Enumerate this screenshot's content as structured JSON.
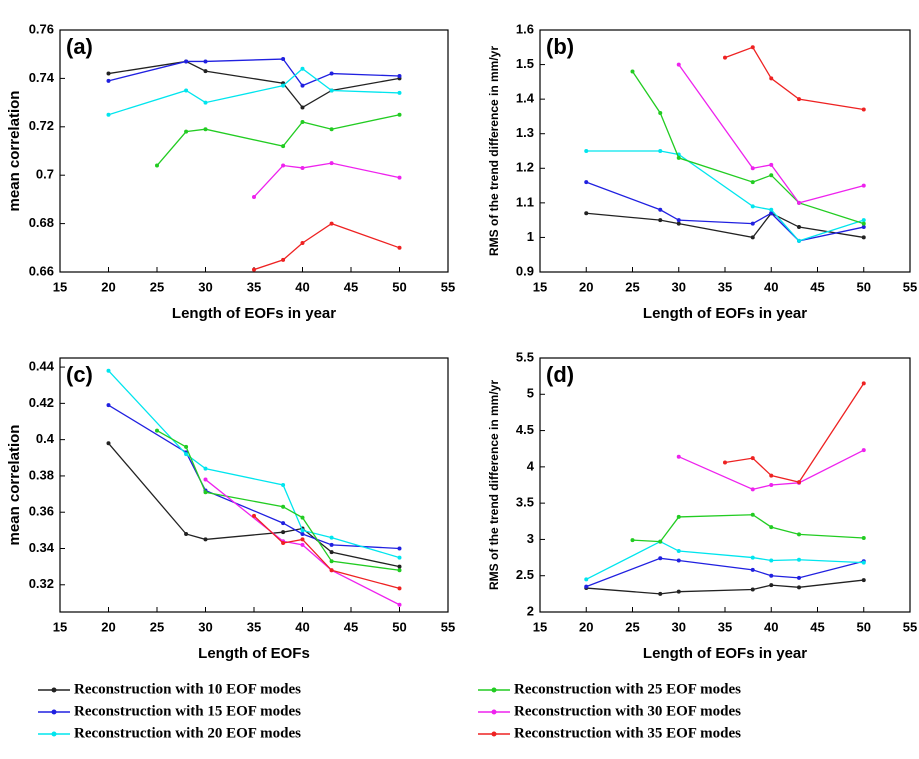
{
  "chart_data": [
    {
      "type": "line",
      "panel_label": "(a)",
      "ylabel": "mean correlation",
      "xlabel": "Length of EOFs in year",
      "xlim": [
        15,
        55
      ],
      "xticks": [
        15,
        20,
        25,
        30,
        35,
        40,
        45,
        50,
        55
      ],
      "ylim": [
        0.66,
        0.76
      ],
      "yticks": [
        0.66,
        0.68,
        0.7,
        0.72,
        0.74,
        0.76
      ],
      "series": [
        {
          "name": "Reconstruction with 10 EOF modes",
          "color": "#222222",
          "x": [
            20,
            28,
            30,
            38,
            40,
            43,
            50
          ],
          "values": [
            0.742,
            0.747,
            0.743,
            0.738,
            0.728,
            0.735,
            0.74
          ]
        },
        {
          "name": "Reconstruction with 15 EOF modes",
          "color": "#2020e0",
          "x": [
            20,
            28,
            30,
            38,
            40,
            43,
            50
          ],
          "values": [
            0.739,
            0.747,
            0.747,
            0.748,
            0.737,
            0.742,
            0.741
          ]
        },
        {
          "name": "Reconstruction with 20 EOF modes",
          "color": "#00e5ee",
          "x": [
            20,
            28,
            30,
            38,
            40,
            43,
            50
          ],
          "values": [
            0.725,
            0.735,
            0.73,
            0.737,
            0.744,
            0.735,
            0.734
          ]
        },
        {
          "name": "Reconstruction with 25 EOF modes",
          "color": "#22cc22",
          "x": [
            25,
            28,
            30,
            38,
            40,
            43,
            50
          ],
          "values": [
            0.704,
            0.718,
            0.719,
            0.712,
            0.722,
            0.719,
            0.725
          ]
        },
        {
          "name": "Reconstruction with 30 EOF modes",
          "color": "#ee22ee",
          "x": [
            35,
            38,
            40,
            43,
            50
          ],
          "values": [
            0.691,
            0.704,
            0.703,
            0.705,
            0.699
          ]
        },
        {
          "name": "Reconstruction with 35 EOF modes",
          "color": "#ee2222",
          "x": [
            35,
            38,
            40,
            43,
            50
          ],
          "values": [
            0.661,
            0.665,
            0.672,
            0.68,
            0.67
          ]
        }
      ]
    },
    {
      "type": "line",
      "panel_label": "(b)",
      "ylabel": "RMS of the trend difference in mm/yr",
      "xlabel": "Length of EOFs in year",
      "xlim": [
        15,
        55
      ],
      "xticks": [
        15,
        20,
        25,
        30,
        35,
        40,
        45,
        50,
        55
      ],
      "ylim": [
        0.9,
        1.6
      ],
      "yticks": [
        0.9,
        1,
        1.1,
        1.2,
        1.3,
        1.4,
        1.5,
        1.6
      ],
      "series": [
        {
          "color": "#222222",
          "x": [
            20,
            28,
            30,
            38,
            40,
            43,
            50
          ],
          "values": [
            1.07,
            1.05,
            1.04,
            1.0,
            1.07,
            1.03,
            1.0
          ]
        },
        {
          "color": "#2020e0",
          "x": [
            20,
            28,
            30,
            38,
            40,
            43,
            50
          ],
          "values": [
            1.16,
            1.08,
            1.05,
            1.04,
            1.07,
            0.99,
            1.03
          ]
        },
        {
          "color": "#00e5ee",
          "x": [
            20,
            28,
            30,
            38,
            40,
            43,
            50
          ],
          "values": [
            1.25,
            1.25,
            1.24,
            1.09,
            1.08,
            0.99,
            1.05
          ]
        },
        {
          "color": "#22cc22",
          "x": [
            25,
            28,
            30,
            38,
            40,
            43,
            50
          ],
          "values": [
            1.48,
            1.36,
            1.23,
            1.16,
            1.18,
            1.1,
            1.04
          ]
        },
        {
          "color": "#ee22ee",
          "x": [
            30,
            38,
            40,
            43,
            50
          ],
          "values": [
            1.5,
            1.2,
            1.21,
            1.1,
            1.15
          ]
        },
        {
          "color": "#ee2222",
          "x": [
            35,
            38,
            40,
            43,
            50
          ],
          "values": [
            1.52,
            1.55,
            1.46,
            1.4,
            1.37
          ]
        }
      ]
    },
    {
      "type": "line",
      "panel_label": "(c)",
      "ylabel": "mean correlation",
      "xlabel": "Length of EOFs",
      "xlim": [
        15,
        55
      ],
      "xticks": [
        15,
        20,
        25,
        30,
        35,
        40,
        45,
        50,
        55
      ],
      "ylim": [
        0.305,
        0.445
      ],
      "yticks": [
        0.32,
        0.34,
        0.36,
        0.38,
        0.4,
        0.42,
        0.44
      ],
      "series": [
        {
          "color": "#222222",
          "x": [
            20,
            28,
            30,
            38,
            40,
            43,
            50
          ],
          "values": [
            0.398,
            0.348,
            0.345,
            0.349,
            0.351,
            0.338,
            0.33
          ]
        },
        {
          "color": "#2020e0",
          "x": [
            20,
            28,
            30,
            38,
            40,
            43,
            50
          ],
          "values": [
            0.419,
            0.393,
            0.372,
            0.354,
            0.348,
            0.342,
            0.34
          ]
        },
        {
          "color": "#00e5ee",
          "x": [
            20,
            28,
            30,
            38,
            40,
            43,
            50
          ],
          "values": [
            0.438,
            0.392,
            0.384,
            0.375,
            0.35,
            0.346,
            0.335
          ]
        },
        {
          "color": "#22cc22",
          "x": [
            25,
            28,
            30,
            38,
            40,
            43,
            50
          ],
          "values": [
            0.405,
            0.396,
            0.371,
            0.363,
            0.357,
            0.333,
            0.328
          ]
        },
        {
          "color": "#ee22ee",
          "x": [
            30,
            38,
            40,
            43,
            50
          ],
          "values": [
            0.378,
            0.344,
            0.342,
            0.328,
            0.309
          ]
        },
        {
          "color": "#ee2222",
          "x": [
            35,
            38,
            40,
            43,
            50
          ],
          "values": [
            0.358,
            0.343,
            0.345,
            0.328,
            0.318
          ]
        }
      ]
    },
    {
      "type": "line",
      "panel_label": "(d)",
      "ylabel": "RMS of the trend difference in mm/yr",
      "xlabel": "Length of EOFs in year",
      "xlim": [
        15,
        55
      ],
      "xticks": [
        15,
        20,
        25,
        30,
        35,
        40,
        45,
        50,
        55
      ],
      "ylim": [
        2,
        5.5
      ],
      "yticks": [
        2,
        2.5,
        3,
        3.5,
        4,
        4.5,
        5,
        5.5
      ],
      "series": [
        {
          "color": "#222222",
          "x": [
            20,
            28,
            30,
            38,
            40,
            43,
            50
          ],
          "values": [
            2.33,
            2.25,
            2.28,
            2.31,
            2.37,
            2.34,
            2.44
          ]
        },
        {
          "color": "#2020e0",
          "x": [
            20,
            28,
            30,
            38,
            40,
            43,
            50
          ],
          "values": [
            2.35,
            2.74,
            2.71,
            2.58,
            2.5,
            2.47,
            2.7
          ]
        },
        {
          "color": "#00e5ee",
          "x": [
            20,
            28,
            30,
            38,
            40,
            43,
            50
          ],
          "values": [
            2.45,
            2.97,
            2.84,
            2.75,
            2.71,
            2.72,
            2.68
          ]
        },
        {
          "color": "#22cc22",
          "x": [
            25,
            28,
            30,
            38,
            40,
            43,
            50
          ],
          "values": [
            2.99,
            2.97,
            3.31,
            3.34,
            3.17,
            3.07,
            3.02
          ]
        },
        {
          "color": "#ee22ee",
          "x": [
            30,
            38,
            40,
            43,
            50
          ],
          "values": [
            4.14,
            3.69,
            3.75,
            3.78,
            4.23
          ]
        },
        {
          "color": "#ee2222",
          "x": [
            35,
            38,
            40,
            43,
            50
          ],
          "values": [
            4.06,
            4.12,
            3.88,
            3.79,
            5.15
          ]
        }
      ]
    }
  ]
}
